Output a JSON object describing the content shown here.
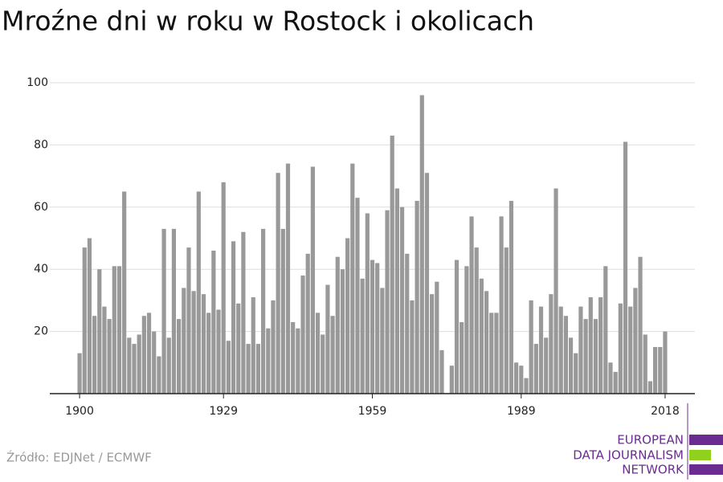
{
  "chart_data": {
    "type": "bar",
    "title": "Mroźne dni w roku w Rostock i okolicach",
    "source": "Źródło: EDJNet / ECMWF",
    "color": "#999999",
    "x": [
      1900,
      1901,
      1902,
      1903,
      1904,
      1905,
      1906,
      1907,
      1908,
      1909,
      1910,
      1911,
      1912,
      1913,
      1914,
      1915,
      1916,
      1917,
      1918,
      1919,
      1920,
      1921,
      1922,
      1923,
      1924,
      1925,
      1926,
      1927,
      1928,
      1929,
      1930,
      1931,
      1932,
      1933,
      1934,
      1935,
      1936,
      1937,
      1938,
      1939,
      1940,
      1941,
      1942,
      1943,
      1944,
      1945,
      1946,
      1947,
      1948,
      1949,
      1950,
      1951,
      1952,
      1953,
      1954,
      1955,
      1956,
      1957,
      1958,
      1959,
      1960,
      1961,
      1962,
      1963,
      1964,
      1965,
      1966,
      1967,
      1968,
      1969,
      1970,
      1971,
      1972,
      1973,
      1974,
      1975,
      1976,
      1977,
      1978,
      1979,
      1980,
      1981,
      1982,
      1983,
      1984,
      1985,
      1986,
      1987,
      1988,
      1989,
      1990,
      1991,
      1992,
      1993,
      1994,
      1995,
      1996,
      1997,
      1998,
      1999,
      2000,
      2001,
      2002,
      2003,
      2004,
      2005,
      2006,
      2007,
      2008,
      2009,
      2010,
      2011,
      2012,
      2013,
      2014,
      2015,
      2016,
      2017,
      2018
    ],
    "values": [
      13,
      47,
      50,
      25,
      40,
      28,
      24,
      41,
      41,
      65,
      18,
      16,
      19,
      25,
      26,
      20,
      12,
      53,
      18,
      53,
      24,
      34,
      47,
      33,
      65,
      32,
      26,
      46,
      27,
      68,
      17,
      49,
      29,
      52,
      16,
      31,
      16,
      53,
      21,
      30,
      71,
      53,
      74,
      23,
      21,
      38,
      45,
      73,
      26,
      19,
      35,
      25,
      44,
      40,
      50,
      74,
      63,
      37,
      58,
      43,
      42,
      34,
      59,
      83,
      66,
      60,
      45,
      30,
      62,
      96,
      71,
      32,
      36,
      14,
      0,
      9,
      43,
      23,
      41,
      57,
      47,
      37,
      33,
      26,
      26,
      57,
      47,
      62,
      10,
      9,
      5,
      30,
      16,
      28,
      18,
      32,
      66,
      28,
      25,
      18,
      13,
      28,
      24,
      31,
      24,
      31,
      41,
      10,
      7,
      29,
      81,
      28,
      34,
      44,
      19,
      4,
      15,
      15,
      20
    ],
    "xlim": [
      1894,
      2024
    ],
    "xticks": [
      1900,
      1929,
      1959,
      1989,
      2018
    ],
    "ylim": [
      0,
      100
    ],
    "yticks": [
      20,
      40,
      60,
      80,
      100
    ],
    "grid": true
  },
  "logo": {
    "lines": [
      "EUROPEAN",
      "DATA JOURNALISM",
      "NETWORK"
    ]
  }
}
